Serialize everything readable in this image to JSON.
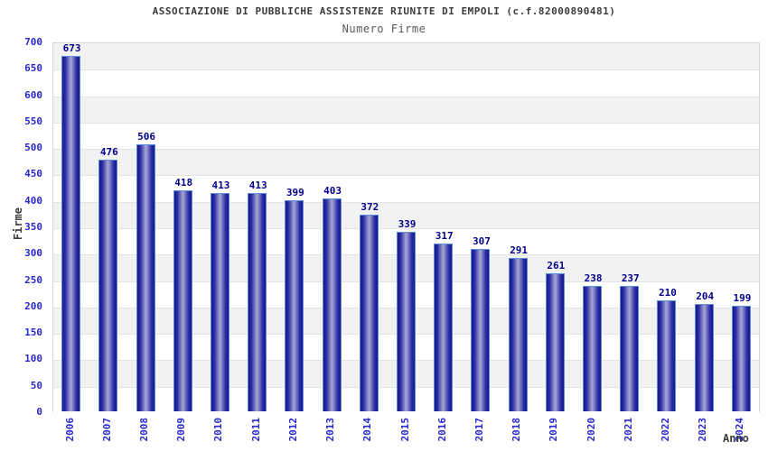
{
  "title": "ASSOCIAZIONE DI PUBBLICHE ASSISTENZE RIUNITE DI EMPOLI (c.f.82000890481)",
  "subtitle": "Numero Firme",
  "chart_data": {
    "type": "bar",
    "categories": [
      "2006",
      "2007",
      "2008",
      "2009",
      "2010",
      "2011",
      "2012",
      "2013",
      "2014",
      "2015",
      "2016",
      "2017",
      "2018",
      "2019",
      "2020",
      "2021",
      "2022",
      "2023",
      "2024"
    ],
    "values": [
      673,
      476,
      506,
      418,
      413,
      413,
      399,
      403,
      372,
      339,
      317,
      307,
      291,
      261,
      238,
      237,
      210,
      204,
      199
    ],
    "title": "ASSOCIAZIONE DI PUBBLICHE ASSISTENZE RIUNITE DI EMPOLI (c.f.82000890481)",
    "subtitle": "Numero Firme",
    "xlabel": "Anno",
    "ylabel": "Firme",
    "ylim": [
      0,
      700
    ],
    "ytick_step": 50,
    "grid": "horizontal gridlines with alternating 50-unit shaded bands",
    "legend": "none",
    "colors": {
      "bar_dark": "#14148c",
      "bar_mid": "#2e2ea6",
      "bar_light": "#a9a9d6",
      "bar_outline": "#5b8fd9",
      "tick_label_blue": "#2828cc",
      "value_label_navy": "#00008b",
      "band_gray": "#f2f2f2",
      "band_white": "#ffffff",
      "gridline": "#e3e3e3",
      "plot_border": "#d6d6d6",
      "title_color": "#3b3b3b",
      "subtitle_color": "#5a5a5a"
    }
  }
}
